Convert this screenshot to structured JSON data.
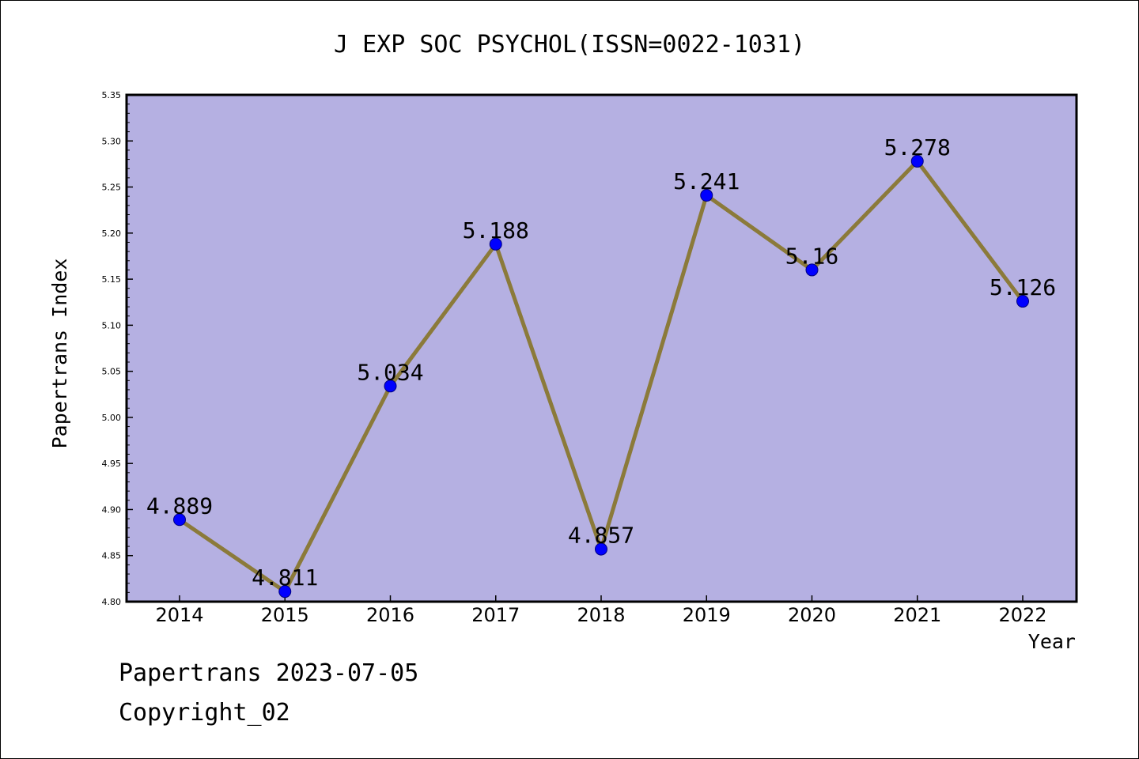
{
  "chart_data": {
    "type": "line",
    "title": "J EXP SOC PSYCHOL(ISSN=0022-1031)",
    "xlabel": "Year",
    "ylabel": "Papertrans Index",
    "categories": [
      "2014",
      "2015",
      "2016",
      "2017",
      "2018",
      "2019",
      "2020",
      "2021",
      "2022"
    ],
    "values": [
      4.889,
      4.811,
      5.034,
      5.188,
      4.857,
      5.241,
      5.16,
      5.278,
      5.126
    ],
    "data_labels": [
      "4.889",
      "4.811",
      "5.034",
      "5.188",
      "4.857",
      "5.241",
      "5.16",
      "5.278",
      "5.126"
    ],
    "ylim": [
      4.8,
      5.35
    ],
    "yticks": [
      "4.80",
      "4.85",
      "4.90",
      "4.95",
      "5.00",
      "5.05",
      "5.10",
      "5.15",
      "5.20",
      "5.25",
      "5.30",
      "5.35"
    ],
    "grid": false,
    "legend": "none",
    "colors": {
      "plot_background": "#b5b0e2",
      "line": "#8b7a3a",
      "marker": "#0000ff",
      "marker_edge": "#000080"
    }
  },
  "footer": {
    "line1": "Papertrans 2023-07-05",
    "line2": "Copyright_02"
  }
}
